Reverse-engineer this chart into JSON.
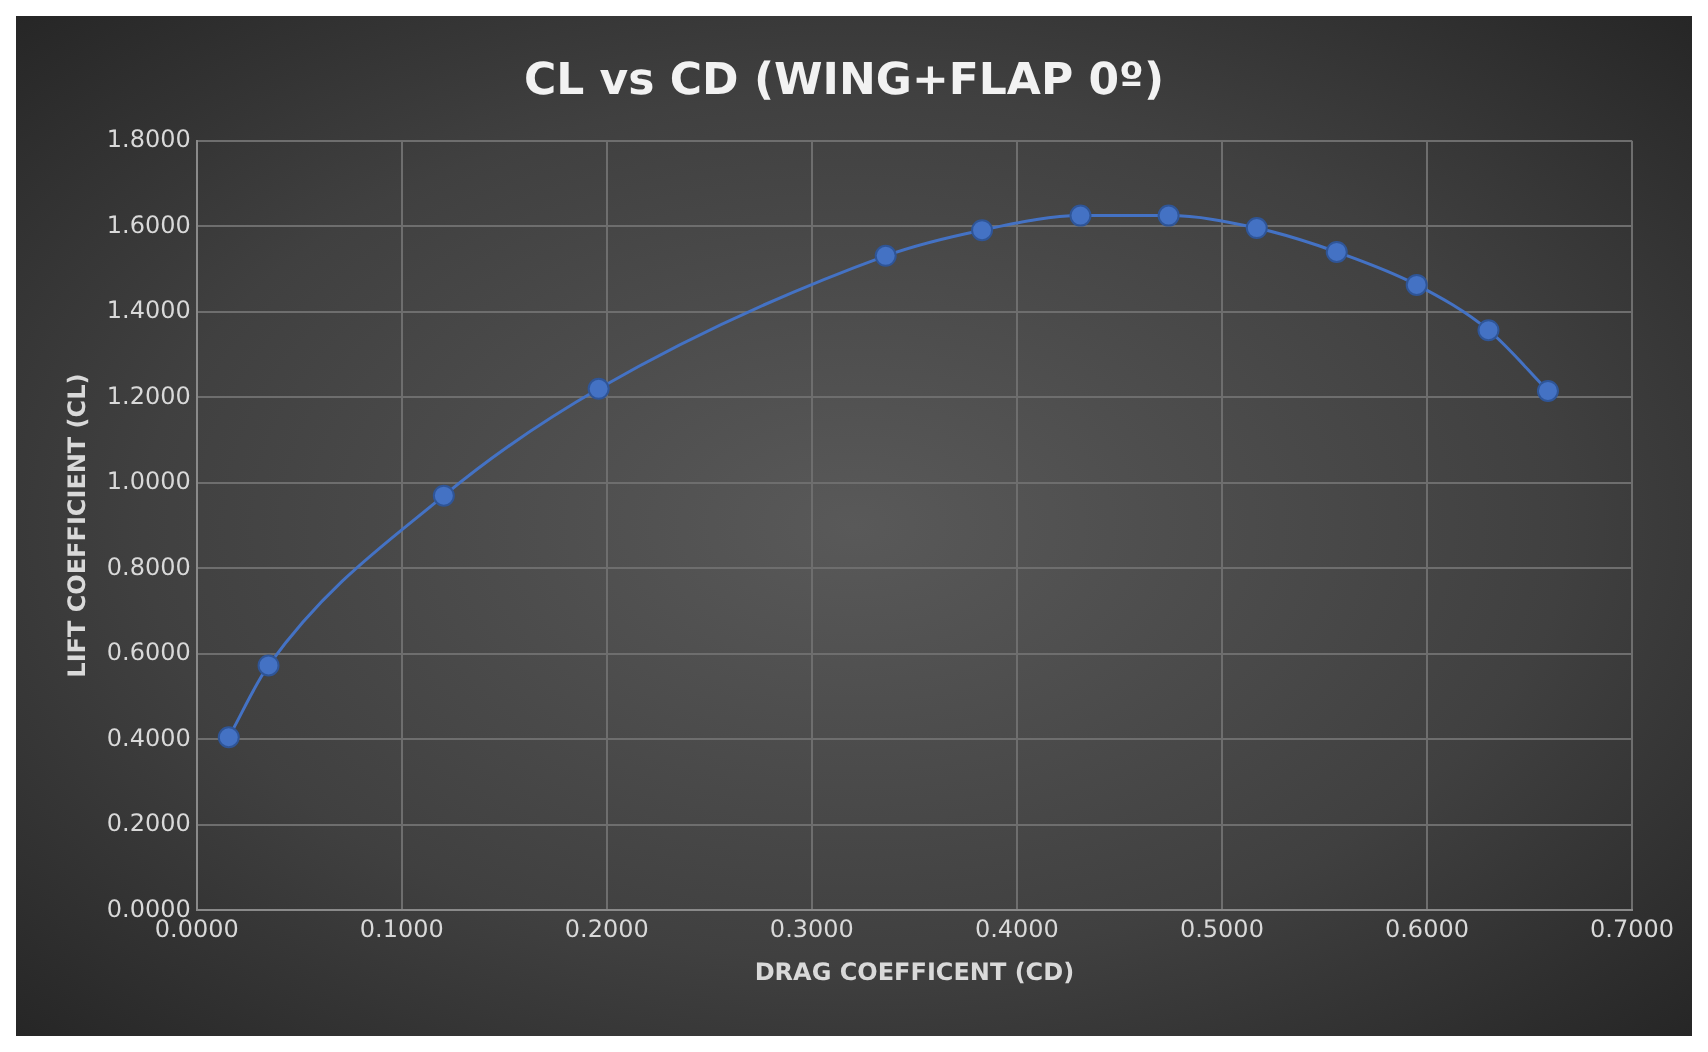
{
  "chart_data": {
    "type": "line",
    "title": "CL vs CD (WING+FLAP 0º)",
    "xlabel": "DRAG COEFFICENT (CD)",
    "ylabel": "LIFT COEFFICIENT (CL)",
    "x": [
      0.0156,
      0.035,
      0.1205,
      0.196,
      0.336,
      0.383,
      0.431,
      0.474,
      0.517,
      0.556,
      0.595,
      0.63,
      0.659
    ],
    "series": [
      {
        "color": "#4472c4",
        "values": [
          0.405,
          0.573,
          0.97,
          1.22,
          1.531,
          1.591,
          1.625,
          1.625,
          1.596,
          1.54,
          1.463,
          1.357,
          1.215
        ]
      }
    ],
    "xlim": [
      0,
      0.7
    ],
    "xticks": [
      {
        "value": 0,
        "label": "0.0000"
      },
      {
        "value": 0.1,
        "label": "0.1000"
      },
      {
        "value": 0.2,
        "label": "0.2000"
      },
      {
        "value": 0.3,
        "label": "0.3000"
      },
      {
        "value": 0.4,
        "label": "0.4000"
      },
      {
        "value": 0.5,
        "label": "0.5000"
      },
      {
        "value": 0.6,
        "label": "0.6000"
      },
      {
        "value": 0.7,
        "label": "0.7000"
      }
    ],
    "ylim": [
      0,
      1.8
    ],
    "yticks": [
      {
        "value": 0,
        "label": "0.0000"
      },
      {
        "value": 0.2,
        "label": "0.2000"
      },
      {
        "value": 0.4,
        "label": "0.4000"
      },
      {
        "value": 0.6,
        "label": "0.6000"
      },
      {
        "value": 0.8,
        "label": "0.8000"
      },
      {
        "value": 1,
        "label": "1.0000"
      },
      {
        "value": 1.2,
        "label": "1.2000"
      },
      {
        "value": 1.4,
        "label": "1.4000"
      },
      {
        "value": 1.6,
        "label": "1.6000"
      },
      {
        "value": 1.8,
        "label": "1.8000"
      }
    ],
    "grid": true,
    "marker": "circle"
  }
}
